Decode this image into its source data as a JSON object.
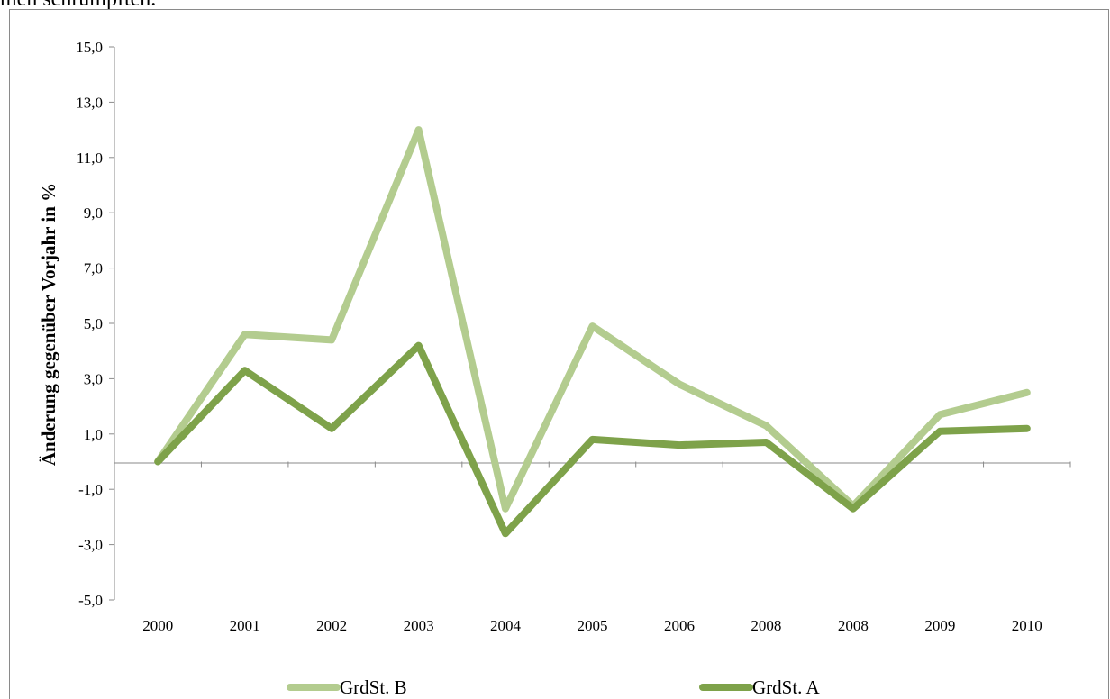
{
  "page": {
    "top_text": "men schrumpften."
  },
  "chart_data": {
    "type": "line",
    "categories": [
      "2000",
      "2001",
      "2002",
      "2003",
      "2004",
      "2005",
      "2006",
      "2008",
      "2008",
      "2009",
      "2010"
    ],
    "series": [
      {
        "name": "GrdSt. B",
        "color": "#b3cc8f",
        "values": [
          0.0,
          4.6,
          4.4,
          12.0,
          -1.7,
          4.9,
          2.8,
          1.3,
          -1.6,
          1.7,
          2.5
        ]
      },
      {
        "name": "GrdSt. A",
        "color": "#7ea24a",
        "values": [
          0.0,
          3.3,
          1.2,
          4.2,
          -2.6,
          0.8,
          0.6,
          0.7,
          -1.7,
          1.1,
          1.2
        ]
      }
    ],
    "ylabel": "Änderung gegenüber Vorjahr in %",
    "xlabel": "",
    "ylim": [
      -5.0,
      15.0
    ],
    "yticks": [
      "-5,0",
      "-3,0",
      "-1,0",
      "1,0",
      "3,0",
      "5,0",
      "7,0",
      "9,0",
      "11,0",
      "13,0",
      "15,0"
    ],
    "grid": false,
    "legend": "bottom"
  }
}
